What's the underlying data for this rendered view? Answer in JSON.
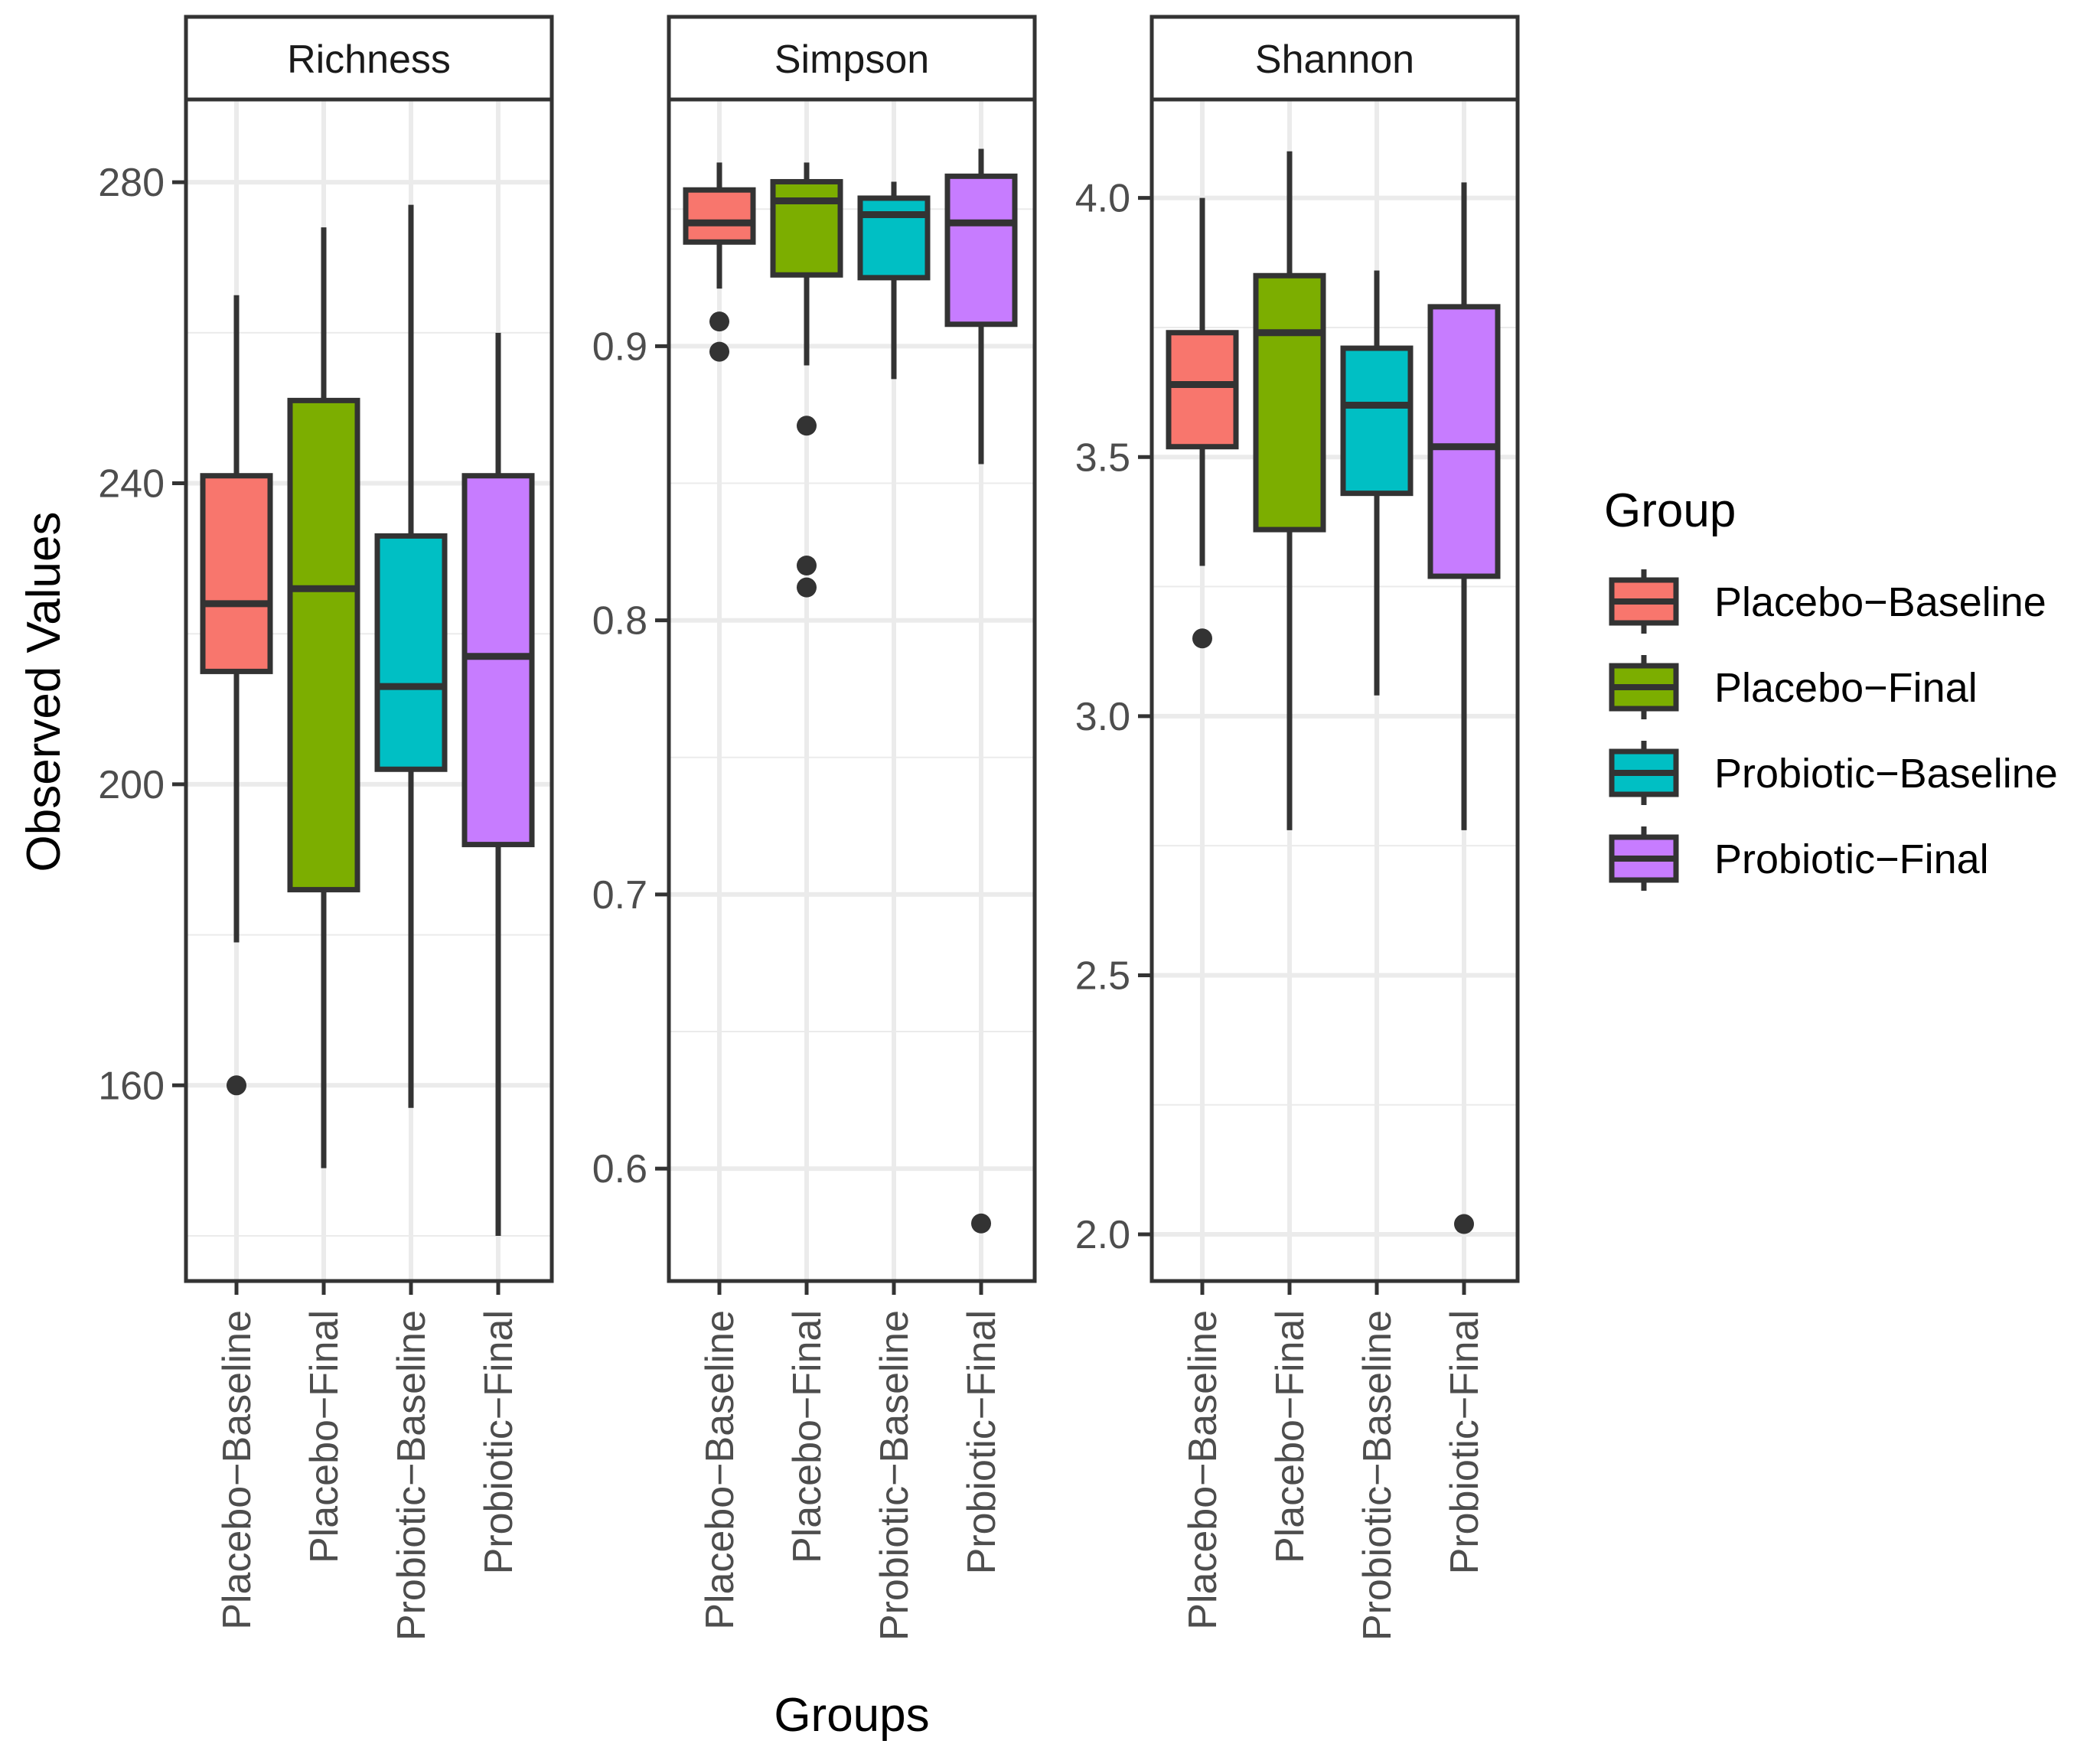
{
  "chart_data": {
    "type": "boxplot",
    "ylabel": "Observed Values",
    "xlabel": "Groups",
    "categories": [
      "Placebo−Baseline",
      "Placebo−Final",
      "Probiotic−Baseline",
      "Probiotic−Final"
    ],
    "colors": [
      "#F8766D",
      "#7CAE00",
      "#00BFC4",
      "#C77CFF"
    ],
    "legend": {
      "title": "Group",
      "position": "right",
      "items": [
        "Placebo−Baseline",
        "Placebo−Final",
        "Probiotic−Baseline",
        "Probiotic−Final"
      ]
    },
    "panels": [
      {
        "title": "Richness",
        "ylim": [
          134,
          291
        ],
        "major_ticks": [
          160,
          200,
          240,
          280
        ],
        "tick_labels": [
          "160",
          "200",
          "240",
          "280"
        ],
        "minor_ticks": [
          140,
          180,
          220,
          260
        ],
        "boxes": [
          {
            "category": "Placebo−Baseline",
            "q1": 215,
            "median": 224,
            "q3": 241,
            "whisker_low": 179,
            "whisker_high": 265,
            "outliers": [
              160
            ]
          },
          {
            "category": "Placebo−Final",
            "q1": 186,
            "median": 226,
            "q3": 251,
            "whisker_low": 149,
            "whisker_high": 274,
            "outliers": []
          },
          {
            "category": "Probiotic−Baseline",
            "q1": 202,
            "median": 213,
            "q3": 233,
            "whisker_low": 157,
            "whisker_high": 277,
            "outliers": []
          },
          {
            "category": "Probiotic−Final",
            "q1": 192,
            "median": 217,
            "q3": 241,
            "whisker_low": 140,
            "whisker_high": 260,
            "outliers": []
          }
        ]
      },
      {
        "title": "Simpson",
        "ylim": [
          0.559,
          0.99
        ],
        "major_ticks": [
          0.6,
          0.7,
          0.8,
          0.9
        ],
        "tick_labels": [
          "0.6",
          "0.7",
          "0.8",
          "0.9"
        ],
        "minor_ticks": [
          0.65,
          0.75,
          0.85,
          0.95
        ],
        "boxes": [
          {
            "category": "Placebo−Baseline",
            "q1": 0.938,
            "median": 0.945,
            "q3": 0.957,
            "whisker_low": 0.921,
            "whisker_high": 0.967,
            "outliers": [
              0.909,
              0.898
            ]
          },
          {
            "category": "Placebo−Final",
            "q1": 0.926,
            "median": 0.953,
            "q3": 0.96,
            "whisker_low": 0.893,
            "whisker_high": 0.967,
            "outliers": [
              0.871,
              0.82,
              0.812
            ]
          },
          {
            "category": "Probiotic−Baseline",
            "q1": 0.925,
            "median": 0.948,
            "q3": 0.954,
            "whisker_low": 0.888,
            "whisker_high": 0.96,
            "outliers": []
          },
          {
            "category": "Probiotic−Final",
            "q1": 0.908,
            "median": 0.945,
            "q3": 0.962,
            "whisker_low": 0.857,
            "whisker_high": 0.972,
            "outliers": [
              0.58
            ]
          }
        ]
      },
      {
        "title": "Shannon",
        "ylim": [
          1.91,
          4.19
        ],
        "major_ticks": [
          2.0,
          2.5,
          3.0,
          3.5,
          4.0
        ],
        "tick_labels": [
          "2.0",
          "2.5",
          "3.0",
          "3.5",
          "4.0"
        ],
        "minor_ticks": [
          2.25,
          2.75,
          3.25,
          3.75
        ],
        "boxes": [
          {
            "category": "Placebo−Baseline",
            "q1": 3.52,
            "median": 3.64,
            "q3": 3.74,
            "whisker_low": 3.29,
            "whisker_high": 4.0,
            "outliers": [
              3.15
            ]
          },
          {
            "category": "Placebo−Final",
            "q1": 3.36,
            "median": 3.74,
            "q3": 3.85,
            "whisker_low": 2.78,
            "whisker_high": 4.09,
            "outliers": []
          },
          {
            "category": "Probiotic−Baseline",
            "q1": 3.43,
            "median": 3.6,
            "q3": 3.71,
            "whisker_low": 3.04,
            "whisker_high": 3.86,
            "outliers": []
          },
          {
            "category": "Probiotic−Final",
            "q1": 3.27,
            "median": 3.52,
            "q3": 3.79,
            "whisker_low": 2.78,
            "whisker_high": 4.03,
            "outliers": [
              2.02
            ]
          }
        ]
      }
    ]
  }
}
